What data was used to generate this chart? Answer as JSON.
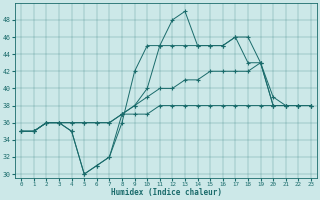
{
  "xlabel": "Humidex (Indice chaleur)",
  "bg_color": "#cce8e8",
  "line_color": "#1a6b6b",
  "xlim": [
    -0.5,
    23.5
  ],
  "ylim": [
    29.5,
    50
  ],
  "yticks": [
    30,
    32,
    34,
    36,
    38,
    40,
    42,
    44,
    46,
    48
  ],
  "xticks": [
    0,
    1,
    2,
    3,
    4,
    5,
    6,
    7,
    8,
    9,
    10,
    11,
    12,
    13,
    14,
    15,
    16,
    17,
    18,
    19,
    20,
    21,
    22,
    23
  ],
  "line1_x": [
    0,
    1,
    2,
    3,
    4,
    5,
    6,
    7,
    8,
    9,
    10,
    11,
    12,
    13,
    14,
    15,
    16,
    17,
    18,
    19,
    20,
    21,
    22,
    23
  ],
  "line1_y": [
    35,
    35,
    36,
    36,
    35,
    30,
    31,
    32,
    36,
    42,
    45,
    45,
    48,
    49,
    45,
    45,
    45,
    46,
    46,
    43,
    39,
    38,
    38,
    38
  ],
  "line2_x": [
    0,
    1,
    2,
    3,
    4,
    5,
    6,
    7,
    8,
    9,
    10,
    11,
    12,
    13,
    14,
    15,
    16,
    17,
    18,
    19,
    20,
    21,
    22,
    23
  ],
  "line2_y": [
    35,
    35,
    36,
    36,
    35,
    30,
    31,
    32,
    37,
    38,
    40,
    45,
    45,
    45,
    45,
    45,
    45,
    46,
    43,
    43,
    38,
    38,
    38,
    38
  ],
  "line3_x": [
    0,
    1,
    2,
    3,
    4,
    5,
    6,
    7,
    8,
    9,
    10,
    11,
    12,
    13,
    14,
    15,
    16,
    17,
    18,
    19,
    20,
    21,
    22,
    23
  ],
  "line3_y": [
    35,
    35,
    36,
    36,
    36,
    36,
    36,
    36,
    37,
    38,
    39,
    40,
    40,
    41,
    41,
    42,
    42,
    42,
    42,
    43,
    38,
    38,
    38,
    38
  ],
  "line4_x": [
    0,
    1,
    2,
    3,
    4,
    5,
    6,
    7,
    8,
    9,
    10,
    11,
    12,
    13,
    14,
    15,
    16,
    17,
    18,
    19,
    20,
    21,
    22,
    23
  ],
  "line4_y": [
    35,
    35,
    36,
    36,
    36,
    36,
    36,
    36,
    37,
    37,
    37,
    38,
    38,
    38,
    38,
    38,
    38,
    38,
    38,
    38,
    38,
    38,
    38,
    38
  ]
}
